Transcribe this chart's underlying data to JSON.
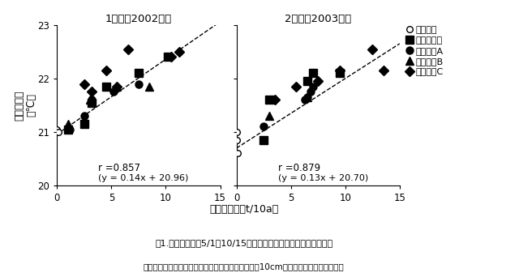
{
  "title1": "1年目（2002年）",
  "title2": "2年目（2003年）",
  "ylabel": "日平均地温\n（℃）",
  "xlabel": "施用乾物量（t/10a）",
  "fig_caption1": "図1.測定全期間（5/1～10/15）の日平均地温と施用乾物量の関係",
  "fig_caption2": "（堤舂および化学肥料を全面散布した後に、深さ約10cmのロータリー耕を行った）",
  "xlim": [
    0,
    15
  ],
  "ylim": [
    20,
    23
  ],
  "yticks": [
    20,
    21,
    22,
    23
  ],
  "xticks": [
    0,
    5,
    10,
    15
  ],
  "plot1": {
    "r_text": "r =0.857",
    "eq_text": "(y = 0.14x + 20.96)",
    "slope": 0.14,
    "intercept": 20.96,
    "chemical": {
      "x": [
        0.0,
        0.0,
        0.1
      ],
      "y": [
        21.0,
        21.05,
        21.0
      ]
    },
    "bark": {
      "x": [
        1.0,
        2.5,
        3.2,
        4.5,
        7.5,
        10.2
      ],
      "y": [
        21.05,
        21.15,
        21.55,
        21.85,
        22.1,
        22.4
      ]
    },
    "cowA": {
      "x": [
        1.2,
        2.5,
        3.2,
        5.2,
        7.5
      ],
      "y": [
        21.05,
        21.3,
        21.6,
        21.75,
        21.9
      ]
    },
    "cowB": {
      "x": [
        1.0,
        3.0,
        5.5,
        8.5
      ],
      "y": [
        21.15,
        21.6,
        21.85,
        21.85
      ]
    },
    "cowC": {
      "x": [
        2.5,
        3.2,
        4.5,
        5.5,
        6.5,
        10.5,
        11.2
      ],
      "y": [
        21.9,
        21.75,
        22.15,
        21.85,
        22.55,
        22.4,
        22.5
      ]
    }
  },
  "plot2": {
    "r_text": "r =0.879",
    "eq_text": "(y = 0.13x + 20.70)",
    "slope": 0.13,
    "intercept": 20.7,
    "chemical": {
      "x": [
        0.0,
        0.0,
        0.1
      ],
      "y": [
        21.0,
        20.85,
        20.6
      ]
    },
    "bark": {
      "x": [
        2.5,
        3.0,
        6.5,
        7.0,
        9.5
      ],
      "y": [
        20.85,
        21.6,
        21.95,
        22.1,
        22.1
      ]
    },
    "cowA": {
      "x": [
        2.5,
        6.3,
        6.5,
        6.8,
        7.0
      ],
      "y": [
        21.1,
        21.6,
        21.65,
        21.75,
        21.85
      ]
    },
    "cowB": {
      "x": [
        3.0,
        6.5
      ],
      "y": [
        21.3,
        21.65
      ]
    },
    "cowC": {
      "x": [
        3.5,
        5.5,
        7.5,
        9.5,
        12.5,
        13.5
      ],
      "y": [
        21.6,
        21.85,
        21.95,
        22.15,
        22.55,
        22.15
      ]
    }
  },
  "legend_labels": [
    "化学肥料",
    "バーク堤舂",
    "牛糞堤舂A",
    "牛糞堤舂B",
    "牛糞堤舂C"
  ]
}
